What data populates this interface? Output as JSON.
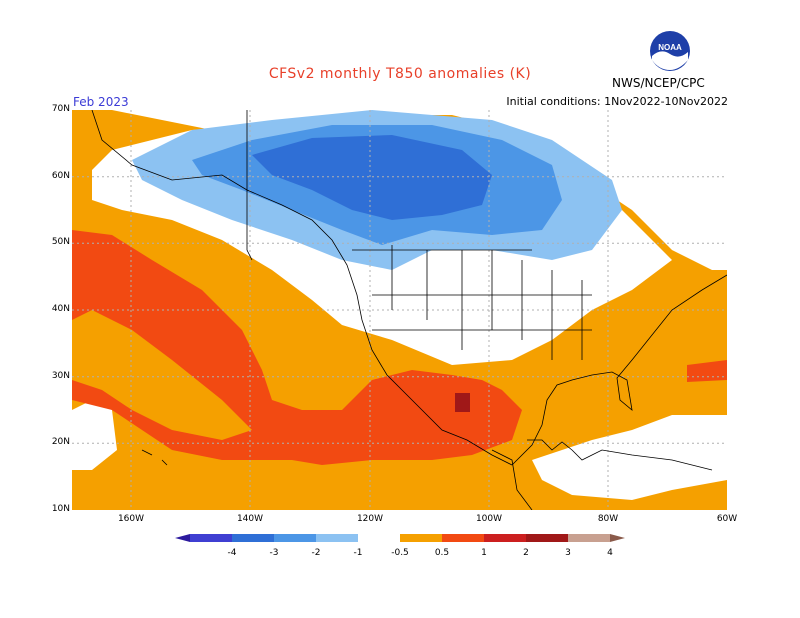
{
  "header": {
    "title": "CFSv2 monthly T850 anomalies (K)",
    "period": "Feb 2023",
    "initial_conditions": "Initial conditions: 1Nov2022-10Nov2022",
    "org": "NWS/NCEP/CPC",
    "logo_text": "NOAA"
  },
  "axes": {
    "lat_labels": [
      "70N",
      "60N",
      "50N",
      "40N",
      "30N",
      "20N",
      "10N"
    ],
    "lon_labels": [
      "160W",
      "140W",
      "120W",
      "100W",
      "80W",
      "60W"
    ]
  },
  "colorbar": {
    "labels": [
      "-4",
      "-3",
      "-2",
      "-1",
      "-0.5",
      "0.5",
      "1",
      "2",
      "3",
      "4"
    ],
    "colors": [
      "#2c1a9e",
      "#3f3fd2",
      "#2f6fd6",
      "#4c96e6",
      "#8cc2f2",
      "#ffffff",
      "#f5a000",
      "#f24a12",
      "#cc1f1f",
      "#a01818",
      "#c8a090",
      "#8a5a4a"
    ]
  },
  "colors": {
    "orange": "#f5a000",
    "red": "#f24a12",
    "darkred": "#a01818",
    "blue_light": "#8cc2f2",
    "blue_mid": "#4c96e6",
    "blue_dark": "#2f6fd6",
    "land_line": "#000000",
    "grid": "#b0b0b0"
  }
}
